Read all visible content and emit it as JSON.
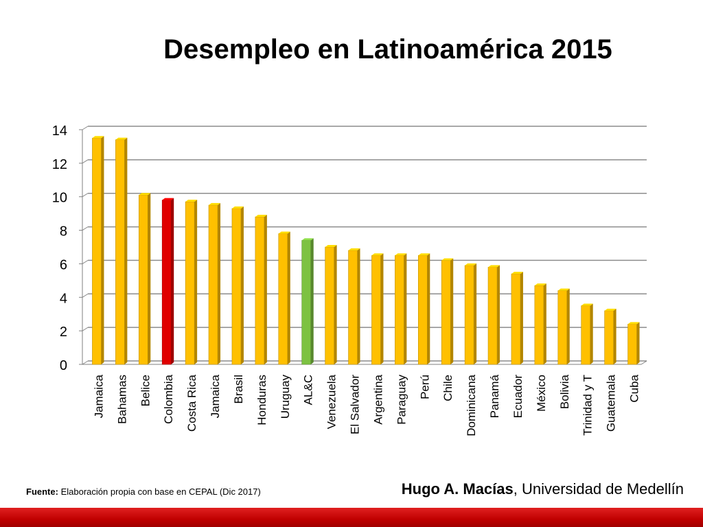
{
  "colors": {
    "default_bar": "#FFC000",
    "highlight_colombia": "#E00000",
    "highlight_alc": "#7DC242",
    "band": "#C00000"
  },
  "chart_data": {
    "type": "bar",
    "title": "Desempleo en Latinoamérica 2015",
    "categories": [
      "Jamaica",
      "Bahamas",
      "Belice",
      "Colombia",
      "Costa Rica",
      "Jamaica",
      "Brasil",
      "Honduras",
      "Uruguay",
      "AL&C",
      "Venezuela",
      "El Salvador",
      "Argentina",
      "Paraguay",
      "Perú",
      "Chile",
      "Dominicana",
      "Panamá",
      "Ecuador",
      "México",
      "Bolivia",
      "Trinidad y T",
      "Guatemala",
      "Cuba"
    ],
    "values": [
      13.5,
      13.4,
      10.1,
      9.8,
      9.7,
      9.5,
      9.3,
      8.8,
      7.8,
      7.4,
      7.0,
      6.8,
      6.5,
      6.5,
      6.5,
      6.2,
      5.9,
      5.8,
      5.4,
      4.7,
      4.4,
      3.5,
      3.2,
      2.4
    ],
    "highlight": {
      "Colombia": "red",
      "AL&C": "green"
    },
    "ylim": [
      0,
      14
    ],
    "yticks": [
      0,
      2,
      4,
      6,
      8,
      10,
      12,
      14
    ],
    "grid": true,
    "legend": "none"
  },
  "footer": {
    "source_label": "Fuente:",
    "source_text": "Elaboración propia con base en CEPAL (Dic 2017)",
    "author_name": "Hugo A. Macías",
    "author_affiliation": ", Universidad de Medellín"
  }
}
